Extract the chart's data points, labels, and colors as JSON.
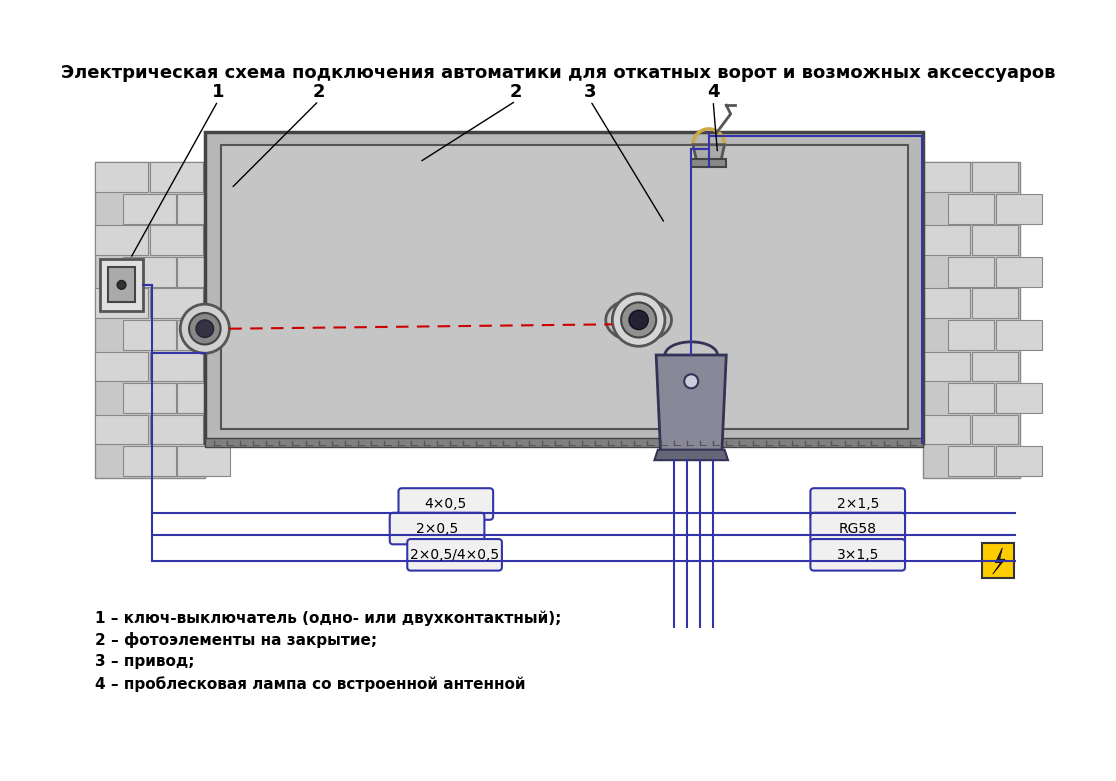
{
  "title": "Электрическая схема подключения автоматики для откатных ворот и возможных аксессуаров",
  "title_fontsize": 13,
  "bg_color": "#ffffff",
  "diagram_bg": "#f0f0f0",
  "gate_color": "#c0c0c0",
  "wall_color": "#b0b0b0",
  "wall_brick_color": "#d0d0d0",
  "wire_color": "#3333aa",
  "beam_color": "#cc0000",
  "label_1": "1",
  "label_2a": "2",
  "label_2b": "2",
  "label_3": "3",
  "label_4": "4",
  "cable_labels_left": [
    "4×0,5",
    "2×0,5",
    "2×0,5/4×0,5"
  ],
  "cable_labels_right": [
    "2×1,5",
    "RG58",
    "3×1,5"
  ],
  "legend": [
    "1 – ключ-выключатель (одно- или двухконтактный);",
    "2 – фотоэлементы на закрытие;",
    "3 – привод;",
    "4 – проблесковая лампа со встроенной антенной"
  ]
}
